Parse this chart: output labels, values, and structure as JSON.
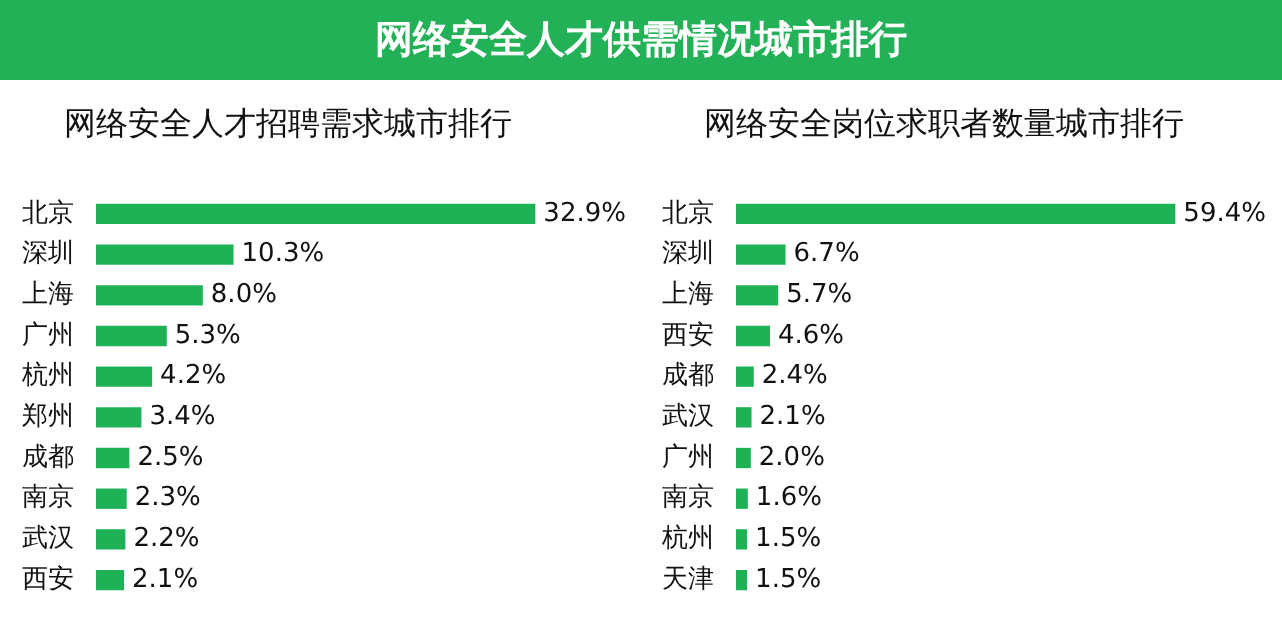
{
  "chart_data": [
    {
      "type": "bar",
      "orientation": "horizontal",
      "title": "网络安全人才供需情况城市排行",
      "subtitle": "网络安全人才招聘需求城市排行",
      "categories": [
        "北京",
        "深圳",
        "上海",
        "广州",
        "杭州",
        "郑州",
        "成都",
        "南京",
        "武汉",
        "西安"
      ],
      "values": [
        32.9,
        10.3,
        8.0,
        5.3,
        4.2,
        3.4,
        2.5,
        2.3,
        2.2,
        2.1
      ],
      "value_labels": [
        "32.9%",
        "10.3%",
        "8.0%",
        "5.3%",
        "4.2%",
        "3.4%",
        "2.5%",
        "2.3%",
        "2.2%",
        "2.1%"
      ],
      "color": "#1fb155",
      "legend": false,
      "grid": false
    },
    {
      "type": "bar",
      "orientation": "horizontal",
      "subtitle": "网络安全岗位求职者数量城市排行",
      "categories": [
        "北京",
        "深圳",
        "上海",
        "西安",
        "成都",
        "武汉",
        "广州",
        "南京",
        "杭州",
        "天津"
      ],
      "values": [
        59.4,
        6.7,
        5.7,
        4.6,
        2.4,
        2.1,
        2.0,
        1.6,
        1.5,
        1.5
      ],
      "value_labels": [
        "59.4%",
        "6.7%",
        "5.7%",
        "4.6%",
        "2.4%",
        "2.1%",
        "2.0%",
        "1.6%",
        "1.5%",
        "1.5%"
      ],
      "color": "#1fb155",
      "legend": false,
      "grid": false
    }
  ]
}
